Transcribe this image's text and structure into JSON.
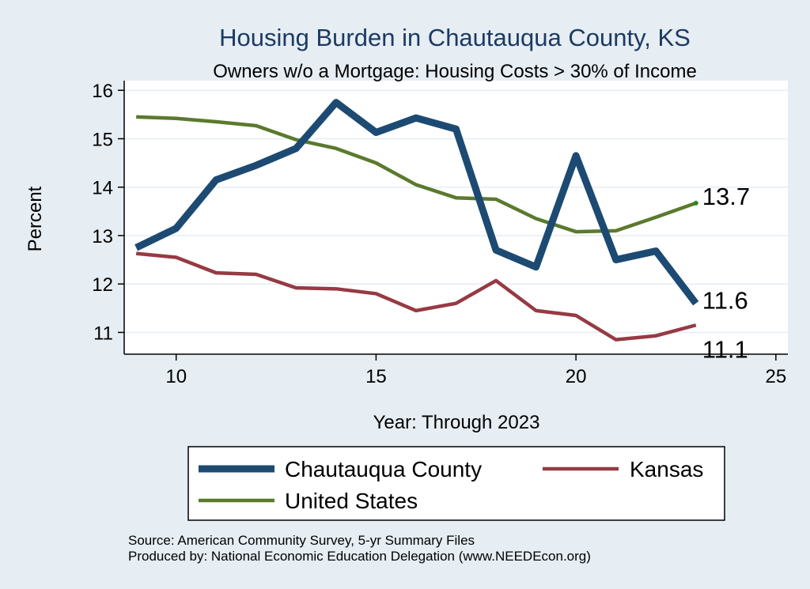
{
  "chart_data": {
    "type": "line",
    "title": "Housing Burden in Chautauqua County, KS",
    "subtitle": "Owners w/o a Mortgage: Housing Costs > 30% of Income",
    "xlabel": "Year: Through 2023",
    "ylabel": "Percent",
    "xlim": [
      8.7,
      25.3
    ],
    "ylim": [
      10.55,
      16.2
    ],
    "xticks": [
      10,
      15,
      20,
      25
    ],
    "yticks": [
      11,
      12,
      13,
      14,
      15,
      16
    ],
    "grid": true,
    "legend_position": "bottom",
    "x": [
      9,
      10,
      11,
      12,
      13,
      14,
      15,
      16,
      17,
      18,
      19,
      20,
      21,
      22,
      23
    ],
    "series": [
      {
        "name": "Chautauqua County",
        "color": "#1c4a72",
        "line_width": "thick",
        "values": [
          12.75,
          13.15,
          14.15,
          14.45,
          14.8,
          15.75,
          15.13,
          15.43,
          15.2,
          12.7,
          12.35,
          14.65,
          12.5,
          12.68,
          11.6
        ],
        "end_label": "11.6"
      },
      {
        "name": "Kansas",
        "color": "#963a43",
        "line_width": "medium",
        "values": [
          12.63,
          12.55,
          12.23,
          12.2,
          11.92,
          11.9,
          11.8,
          11.45,
          11.6,
          12.07,
          11.45,
          11.35,
          10.85,
          10.93,
          11.15
        ],
        "end_label": "11.1"
      },
      {
        "name": "United States",
        "color": "#5a7a2e",
        "line_width": "medium",
        "values": [
          15.45,
          15.42,
          15.35,
          15.27,
          14.98,
          14.8,
          14.5,
          14.05,
          13.78,
          13.75,
          13.35,
          13.08,
          13.1,
          13.38,
          13.67
        ],
        "end_label": "13.7"
      }
    ],
    "legend": [
      {
        "label": "Chautauqua County",
        "series": 0
      },
      {
        "label": "Kansas",
        "series": 1
      },
      {
        "label": "United States",
        "series": 2
      }
    ]
  },
  "source": {
    "line1": "Source: American Community Survey, 5-yr Summary Files",
    "line2": "Produced by: National Economic Education Delegation (www.NEEDEcon.org)"
  },
  "colors": {
    "page_bg": "#e6edf3",
    "plot_bg": "#ffffff",
    "grid": "#e6edf3",
    "title": "#1c3a63"
  }
}
